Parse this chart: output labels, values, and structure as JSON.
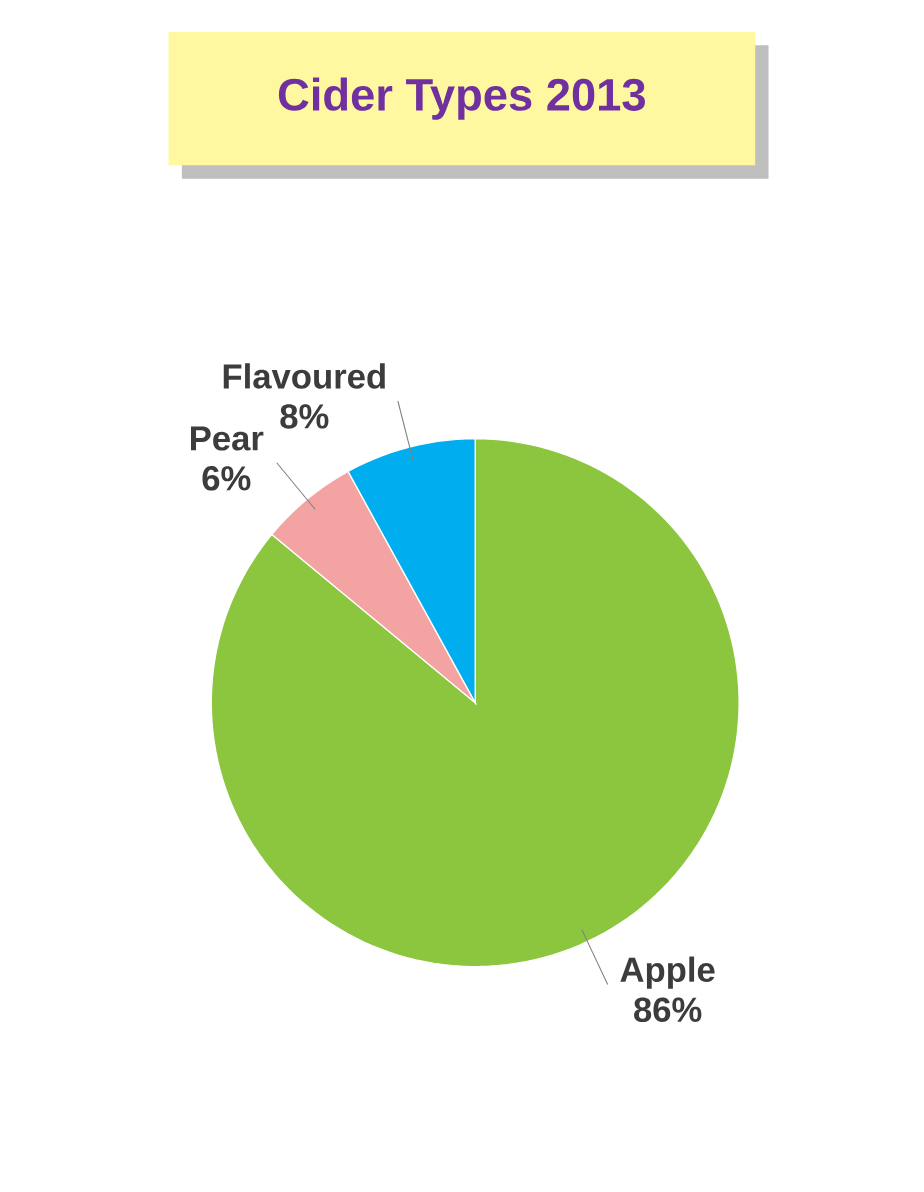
{
  "chart_data": {
    "type": "pie",
    "title": "Cider Types 2013",
    "categories": [
      "Apple",
      "Pear",
      "Flavoured"
    ],
    "values": [
      86,
      6,
      8
    ],
    "colors": [
      "#8cc63f",
      "#f4a3a3",
      "#00aeef"
    ],
    "value_labels": [
      "86%",
      "6%",
      "8%"
    ]
  }
}
